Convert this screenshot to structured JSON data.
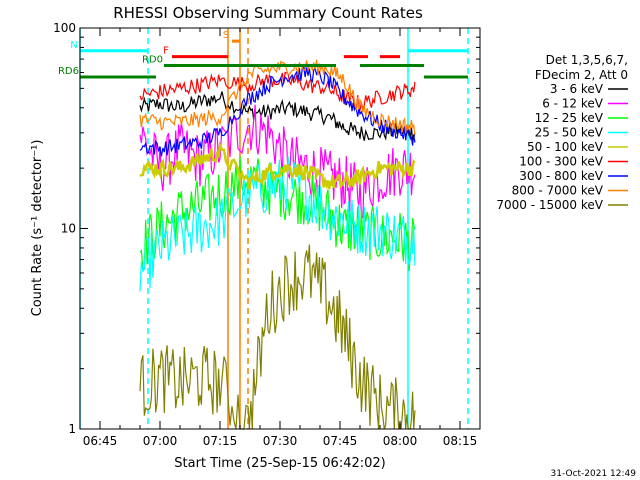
{
  "chart_data": {
    "type": "line",
    "title": "RHESSI Observing Summary Count Rates",
    "xlabel": "Start Time (25-Sep-15 06:42:02)",
    "ylabel": "Count Rate (s⁻¹ detector⁻¹)",
    "ylog": true,
    "xlim": [
      "06:40",
      "08:20"
    ],
    "ylim": [
      1,
      100
    ],
    "xticks": [
      "06:45",
      "07:00",
      "07:15",
      "07:30",
      "07:45",
      "08:00",
      "08:15"
    ],
    "yticks": [
      "1",
      "10",
      "100"
    ],
    "legend_header": [
      "Det 1,3,5,6,7,",
      "FDecim 2, Att 0"
    ],
    "timestamp": "31-Oct-2021 12:49",
    "series": [
      {
        "name": "3 - 6 keV",
        "color": "#000000",
        "x": [
          "06:55",
          "07:00",
          "07:05",
          "07:10",
          "07:15",
          "07:22",
          "07:27",
          "07:32",
          "07:37",
          "07:42",
          "07:46",
          "07:50",
          "07:55",
          "08:00",
          "08:04"
        ],
        "y": [
          40,
          42,
          40,
          43,
          45,
          38,
          38,
          40,
          38,
          36,
          32,
          30,
          30,
          31,
          30
        ]
      },
      {
        "name": "6 - 12 keV",
        "color": "#ff00ff",
        "x": [
          "06:55",
          "07:00",
          "07:05",
          "07:10",
          "07:15",
          "07:22",
          "07:27",
          "07:32",
          "07:37",
          "07:42",
          "07:46",
          "07:50",
          "07:55",
          "08:00",
          "08:04"
        ],
        "y": [
          30,
          20,
          25,
          22,
          25,
          33,
          30,
          22,
          20,
          18,
          17,
          15,
          18,
          20,
          20
        ]
      },
      {
        "name": "12 - 25 keV",
        "color": "#00ff00",
        "x": [
          "06:55",
          "07:00",
          "07:05",
          "07:10",
          "07:15",
          "07:22",
          "07:27",
          "07:32",
          "07:37",
          "07:42",
          "07:46",
          "07:50",
          "07:55",
          "08:00",
          "08:04"
        ],
        "y": [
          8,
          10,
          12,
          13,
          15,
          18,
          16,
          15,
          14,
          12,
          10,
          10,
          9,
          9,
          8
        ]
      },
      {
        "name": "25 - 50 keV",
        "color": "#00ffff",
        "x": [
          "06:55",
          "07:00",
          "07:05",
          "07:10",
          "07:15",
          "07:22",
          "07:27",
          "07:32",
          "07:37",
          "07:42",
          "07:46",
          "07:50",
          "07:55",
          "08:00",
          "08:04"
        ],
        "y": [
          6,
          8,
          9,
          10,
          11,
          15,
          16,
          17,
          15,
          12,
          11,
          10,
          10,
          9,
          9
        ]
      },
      {
        "name": "50 - 100 keV",
        "color": "#cccc00",
        "x": [
          "06:55",
          "07:00",
          "07:05",
          "07:10",
          "07:15",
          "07:22",
          "07:27",
          "07:32",
          "07:37",
          "07:42",
          "07:46",
          "07:50",
          "07:55",
          "08:00",
          "08:04"
        ],
        "y": [
          20,
          20,
          20,
          22,
          24,
          17,
          19,
          20,
          19,
          17,
          17,
          18,
          20,
          20,
          20
        ]
      },
      {
        "name": "100 - 300 keV",
        "color": "#ff0000",
        "x": [
          "06:55",
          "07:00",
          "07:05",
          "07:10",
          "07:15",
          "07:22",
          "07:27",
          "07:32",
          "07:37",
          "07:42",
          "07:46",
          "07:50",
          "07:55",
          "08:00",
          "08:04"
        ],
        "y": [
          46,
          48,
          50,
          52,
          55,
          52,
          55,
          55,
          52,
          50,
          45,
          42,
          45,
          48,
          50
        ]
      },
      {
        "name": "300 - 800 keV",
        "color": "#0000ff",
        "x": [
          "06:55",
          "07:00",
          "07:05",
          "07:10",
          "07:15",
          "07:22",
          "07:27",
          "07:32",
          "07:37",
          "07:42",
          "07:46",
          "07:50",
          "07:55",
          "08:00",
          "08:04"
        ],
        "y": [
          26,
          25,
          26,
          27,
          30,
          44,
          52,
          58,
          60,
          55,
          45,
          38,
          33,
          30,
          28
        ]
      },
      {
        "name": "800 - 7000 keV",
        "color": "#ff8000",
        "x": [
          "06:55",
          "07:00",
          "07:05",
          "07:10",
          "07:15",
          "07:22",
          "07:27",
          "07:32",
          "07:37",
          "07:42",
          "07:46",
          "07:50",
          "07:55",
          "08:00",
          "08:04"
        ],
        "y": [
          35,
          34,
          34,
          35,
          36,
          58,
          62,
          64,
          64,
          63,
          55,
          40,
          35,
          33,
          32
        ]
      },
      {
        "name": "7000 - 15000 keV",
        "color": "#808000",
        "x": [
          "06:55",
          "07:00",
          "07:05",
          "07:10",
          "07:15",
          "07:22",
          "07:27",
          "07:32",
          "07:37",
          "07:42",
          "07:46",
          "07:50",
          "07:55",
          "08:00",
          "08:04"
        ],
        "y": [
          1.6,
          1.8,
          1.7,
          1.8,
          1.7,
          1.0,
          4.0,
          5.5,
          6.0,
          4.5,
          3.0,
          1.8,
          1.3,
          1.2,
          1.1
        ]
      }
    ],
    "state_bars": [
      {
        "label": "N",
        "color": "#00ffff",
        "y": 77,
        "segments": [
          [
            "06:40",
            "06:57"
          ],
          [
            "08:02",
            "08:17"
          ]
        ]
      },
      {
        "label": "F",
        "color": "#ff0000",
        "y": 72,
        "segments": [
          [
            "07:03",
            "07:17"
          ],
          [
            "07:46",
            "07:52"
          ],
          [
            "07:55",
            "08:00"
          ]
        ]
      },
      {
        "label": "RD0",
        "color": "#008000",
        "y": 65,
        "segments": [
          [
            "07:01",
            "07:44"
          ],
          [
            "07:50",
            "08:06"
          ]
        ]
      },
      {
        "label": "RD6",
        "color": "#008000",
        "y": 57,
        "segments": [
          [
            "06:40",
            "06:59"
          ],
          [
            "08:06",
            "08:17"
          ]
        ]
      },
      {
        "label": "S",
        "color": "#ff8000",
        "y": 86,
        "segments": [
          [
            "07:18",
            "07:20"
          ]
        ]
      }
    ],
    "vlines": [
      {
        "t": "06:40",
        "color": "#00ffff",
        "style": "solid"
      },
      {
        "t": "06:57",
        "color": "#00ffff",
        "style": "dashed"
      },
      {
        "t": "08:02",
        "color": "#00ffff",
        "style": "solid"
      },
      {
        "t": "08:17",
        "color": "#00ffff",
        "style": "dashed"
      },
      {
        "t": "07:17",
        "color": "#ff8000",
        "style": "solid"
      },
      {
        "t": "07:20",
        "color": "#ff8000",
        "style": "solid"
      },
      {
        "t": "07:22",
        "color": "#ff8000",
        "style": "dashed"
      }
    ]
  }
}
